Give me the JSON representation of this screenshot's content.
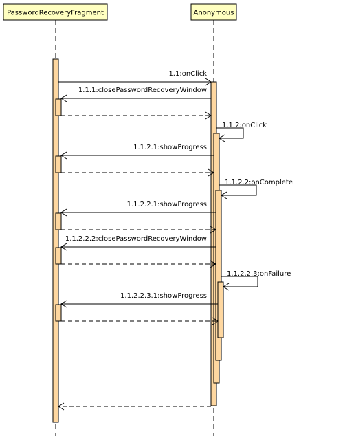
{
  "participants": [
    {
      "id": "prf",
      "name": "PasswordRecoveryFragment"
    },
    {
      "id": "anon",
      "name": "Anonymous"
    }
  ],
  "messages": [
    {
      "id": "m1",
      "label": "1.1:onClick"
    },
    {
      "id": "m2",
      "label": "1.1.1:closePasswordRecoveryWindow"
    },
    {
      "id": "m3",
      "label": "1.1.2:onClick"
    },
    {
      "id": "m4",
      "label": "1.1.2.1:showProgress"
    },
    {
      "id": "m5",
      "label": "1.1.2.2:onComplete"
    },
    {
      "id": "m6",
      "label": "1.1.2.2.1:showProgress"
    },
    {
      "id": "m7",
      "label": "1.1.2.2.2:closePasswordRecoveryWindow"
    },
    {
      "id": "m8",
      "label": "1.1.2.2.3:onFailure"
    },
    {
      "id": "m9",
      "label": "1.1.2.2.3.1:showProgress"
    }
  ]
}
